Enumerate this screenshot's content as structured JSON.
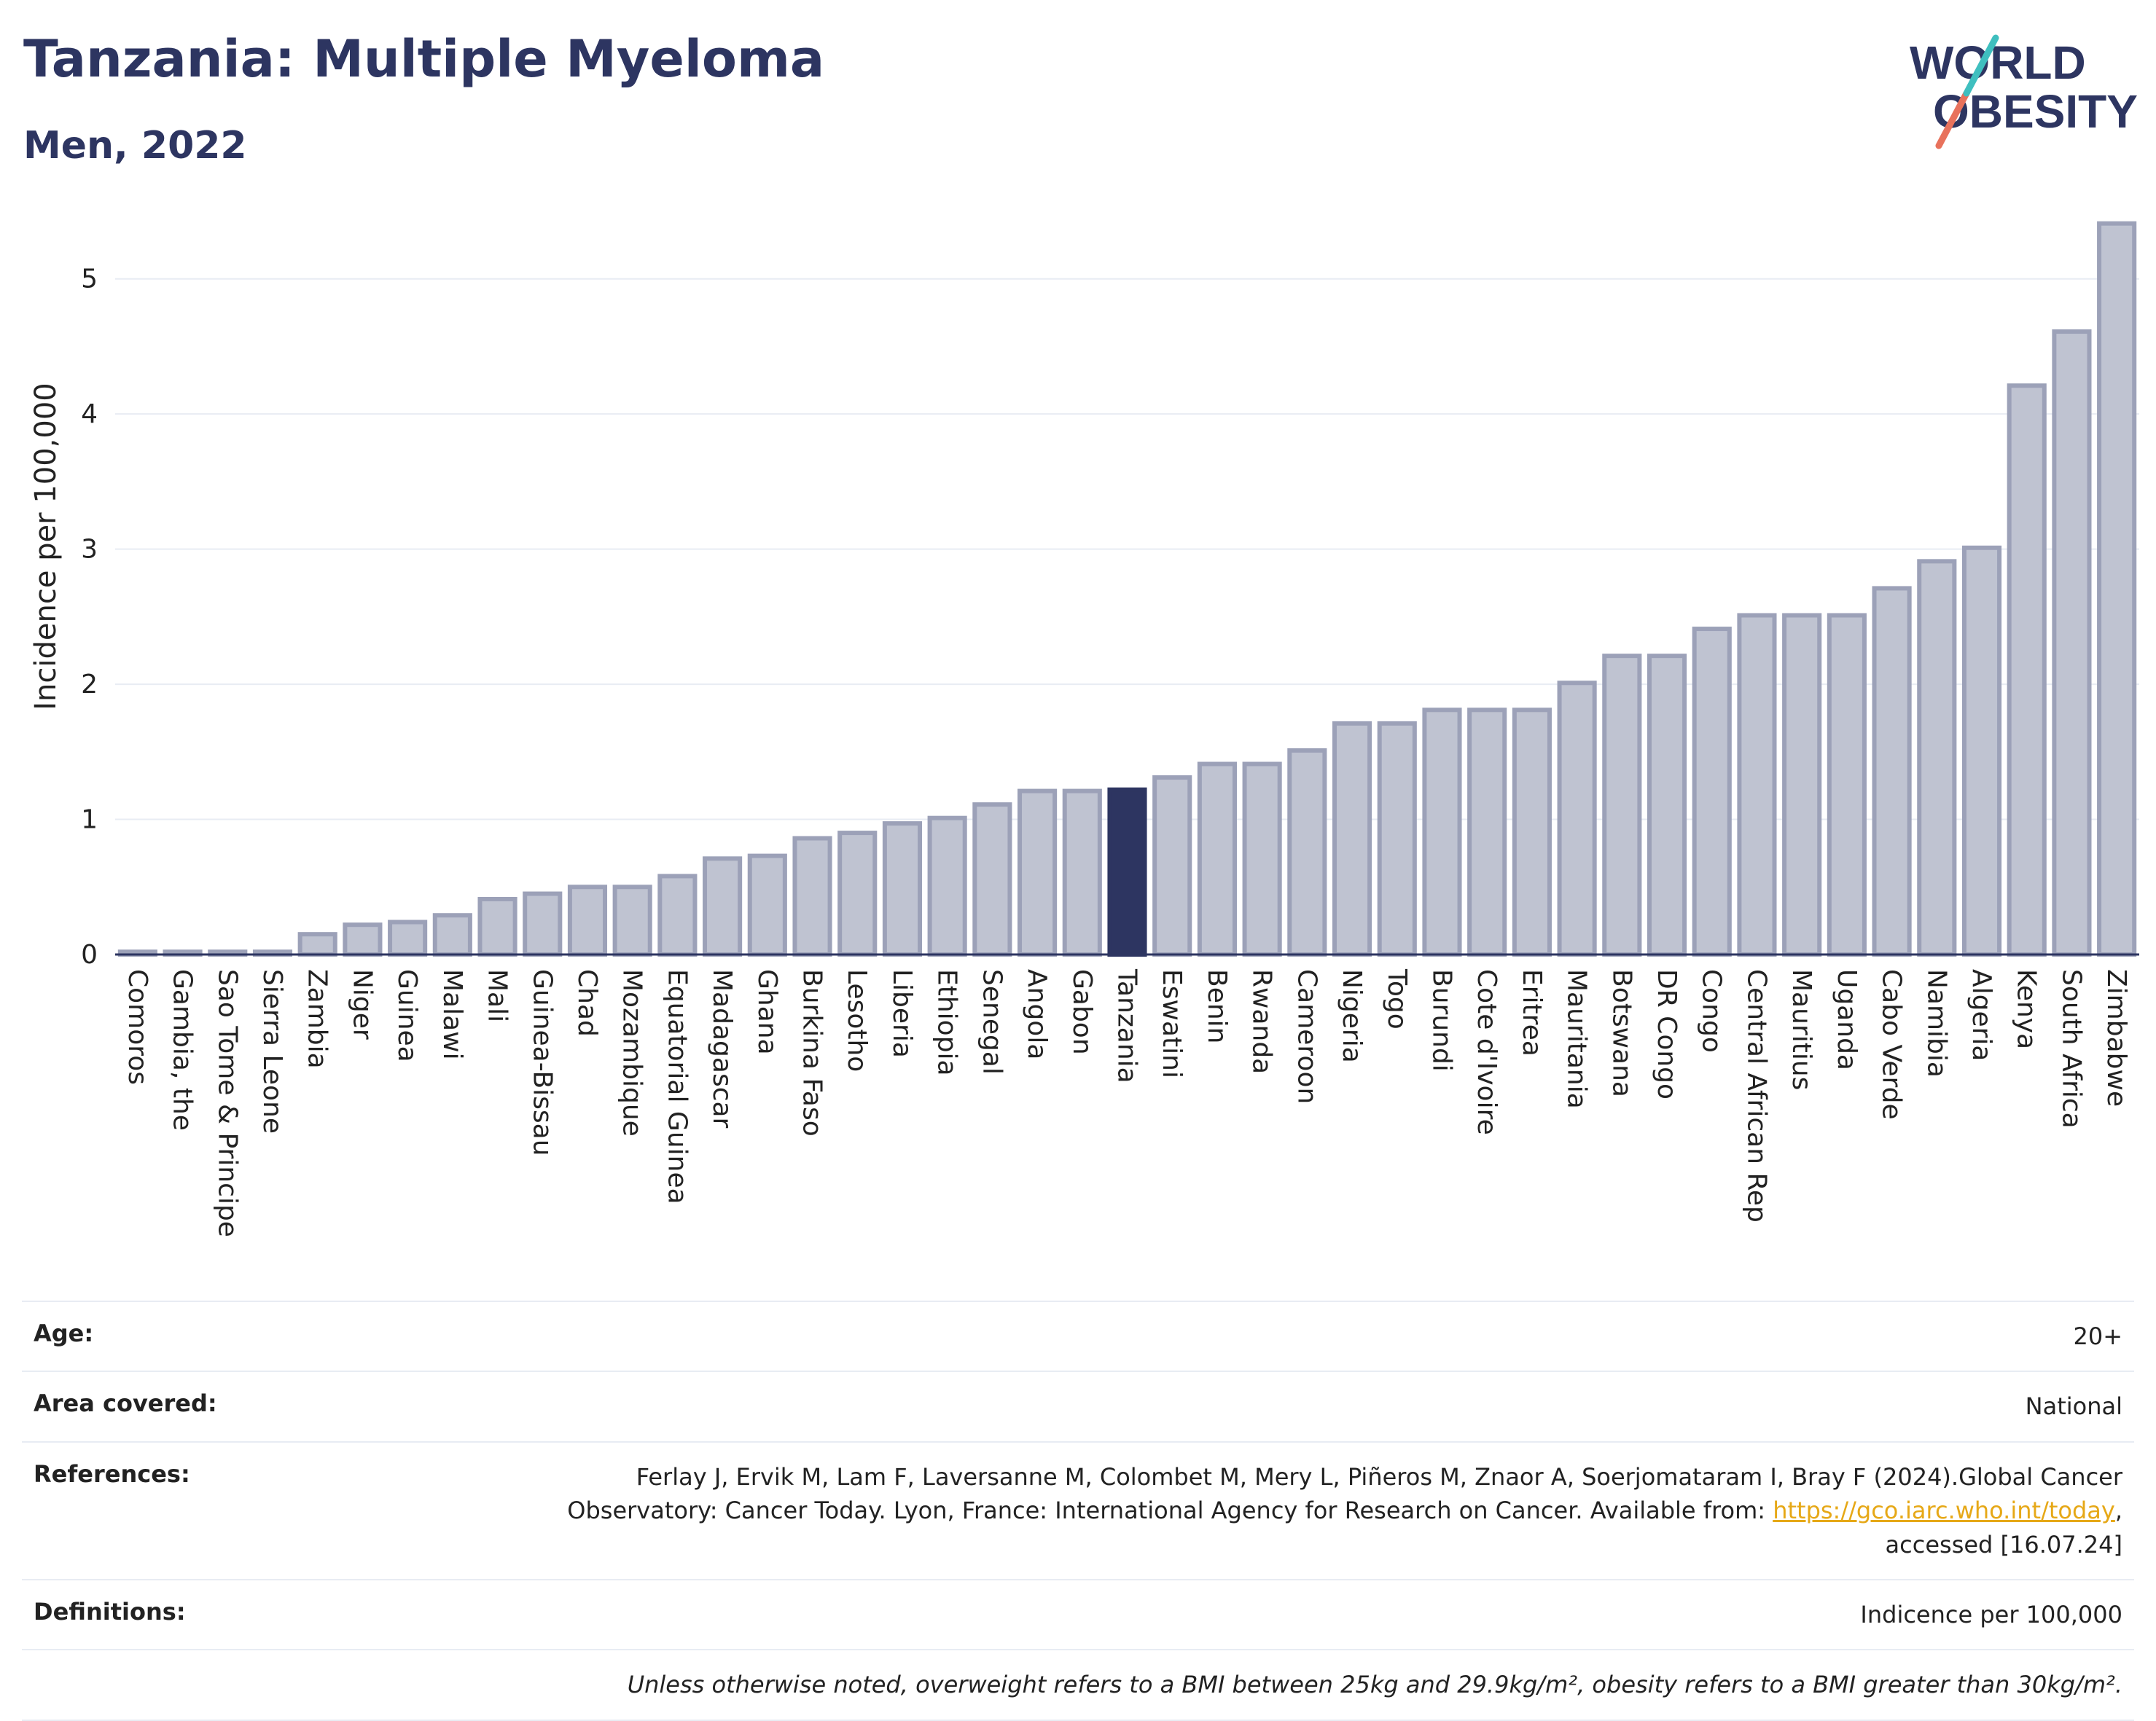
{
  "header": {
    "title": "Tanzania: Multiple Myeloma",
    "subtitle": "Men, 2022",
    "logo_text_line1": "WORLD",
    "logo_text_line2": "OBESITY"
  },
  "colors": {
    "highlight": "#2d3561",
    "bar": "#bfc3d1",
    "bar_stroke": "#9ca1b8",
    "grid": "#e8ecf3",
    "logo_teal": "#3fbfbf",
    "logo_coral": "#e8725c"
  },
  "chart_data": {
    "type": "bar",
    "title": "Tanzania: Multiple Myeloma",
    "subtitle": "Men, 2022",
    "xlabel": "",
    "ylabel": "Incidence per 100,000",
    "ylim": [
      0,
      5.5
    ],
    "yticks": [
      0,
      1,
      2,
      3,
      4,
      5
    ],
    "grid": true,
    "highlight": "Tanzania",
    "categories": [
      "Comoros",
      "Gambia, the",
      "Sao Tome & Principe",
      "Sierra Leone",
      "Zambia",
      "Niger",
      "Guinea",
      "Malawi",
      "Mali",
      "Guinea-Bissau",
      "Chad",
      "Mozambique",
      "Equatorial Guinea",
      "Madagascar",
      "Ghana",
      "Burkina Faso",
      "Lesotho",
      "Liberia",
      "Ethiopia",
      "Senegal",
      "Angola",
      "Gabon",
      "Tanzania",
      "Eswatini",
      "Benin",
      "Rwanda",
      "Cameroon",
      "Nigeria",
      "Togo",
      "Burundi",
      "Cote d'Ivoire",
      "Eritrea",
      "Mauritania",
      "Botswana",
      "DR Congo",
      "Congo",
      "Central African Rep",
      "Mauritius",
      "Uganda",
      "Cabo Verde",
      "Namibia",
      "Algeria",
      "Kenya",
      "South Africa",
      "Zimbabwe"
    ],
    "values": [
      0.02,
      0.02,
      0.02,
      0.02,
      0.15,
      0.22,
      0.24,
      0.29,
      0.41,
      0.45,
      0.5,
      0.5,
      0.58,
      0.71,
      0.73,
      0.86,
      0.9,
      0.97,
      1.01,
      1.11,
      1.21,
      1.21,
      1.22,
      1.31,
      1.41,
      1.41,
      1.51,
      1.71,
      1.71,
      1.81,
      1.81,
      1.81,
      2.01,
      2.21,
      2.21,
      2.41,
      2.51,
      2.51,
      2.51,
      2.71,
      2.91,
      3.01,
      4.21,
      4.61,
      5.41
    ]
  },
  "meta": {
    "age_label": "Age:",
    "age_value": "20+",
    "area_label": "Area covered:",
    "area_value": "National",
    "references_label": "References:",
    "references_text_line1": "Ferlay J, Ervik M, Lam F, Laversanne M, Colombet M, Mery L, Piñeros M, Znaor A, Soerjomataram I, Bray F (2024).Global Cancer",
    "references_text_line2": "Observatory: Cancer Today. Lyon, France: International Agency for Research on Cancer. Available from:",
    "references_link": "https://gco.iarc.who.int/today",
    "references_text_line3": "accessed [16.07.24]",
    "definitions_label": "Definitions:",
    "definitions_value": "Indicence per 100,000",
    "note": "Unless otherwise noted, overweight refers to a BMI between 25kg and 29.9kg/m², obesity refers to a BMI greater than 30kg/m²."
  }
}
